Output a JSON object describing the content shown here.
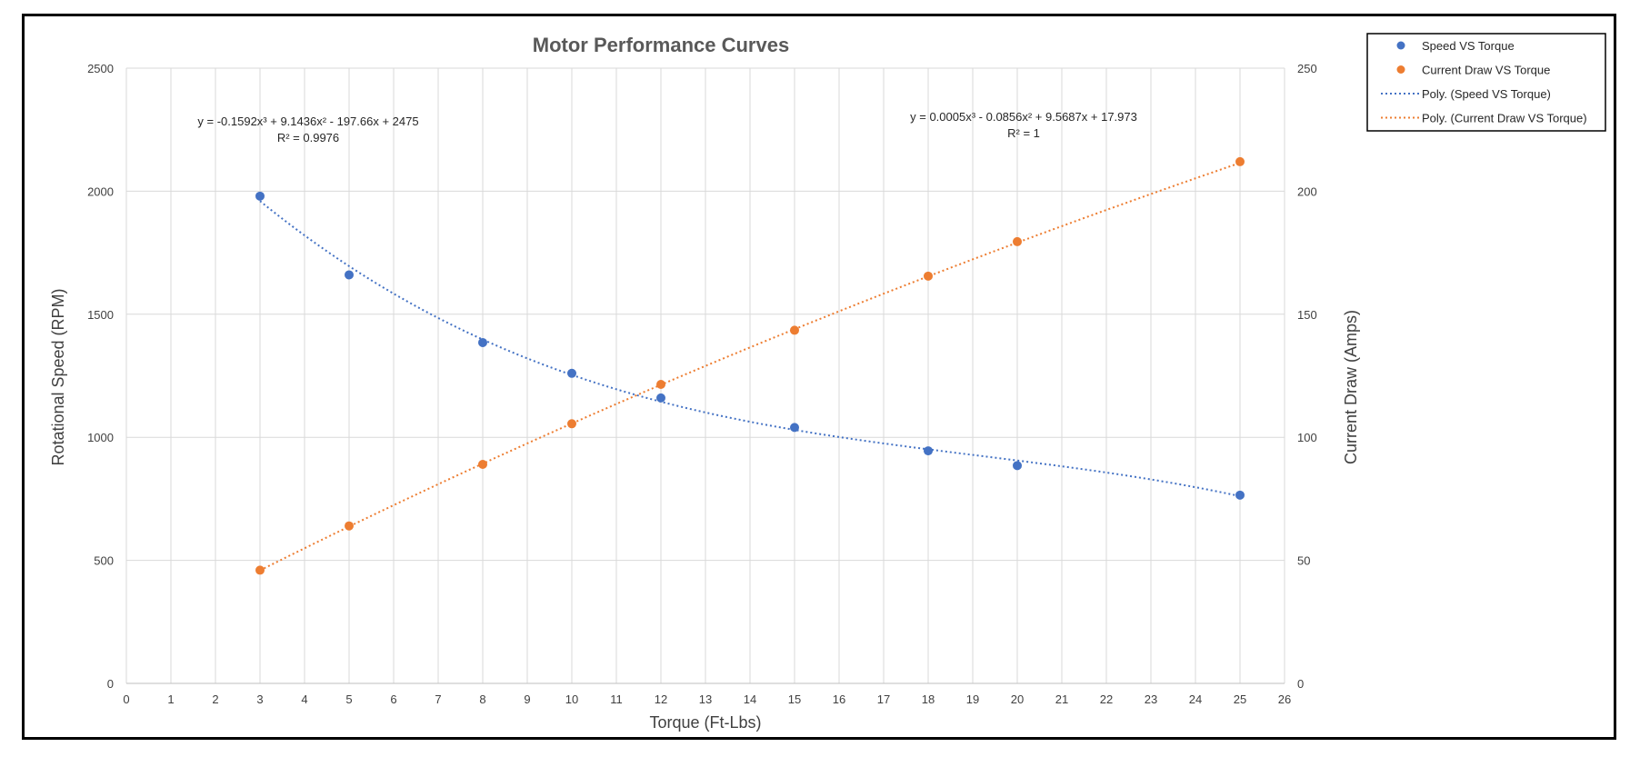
{
  "chart_data": {
    "type": "scatter",
    "title": "Motor Performance Curves",
    "xlabel": "Torque (Ft-Lbs)",
    "ylabel": "Rotational Speed (RPM)",
    "y2label": "Current Draw (Amps)",
    "xlim": [
      0,
      26
    ],
    "ylim": [
      0,
      2500
    ],
    "y2lim": [
      0,
      250
    ],
    "x_ticks": [
      0,
      1,
      2,
      3,
      4,
      5,
      6,
      7,
      8,
      9,
      10,
      11,
      12,
      13,
      14,
      15,
      16,
      17,
      18,
      19,
      20,
      21,
      22,
      23,
      24,
      25,
      26
    ],
    "y_ticks": [
      0,
      500,
      1000,
      1500,
      2000,
      2500
    ],
    "y2_ticks": [
      0,
      50,
      100,
      150,
      200,
      250
    ],
    "grid": true,
    "legend_position": "top-right",
    "series": [
      {
        "name": "Speed VS Torque",
        "axis": "left",
        "color": "#4472C4",
        "x": [
          3,
          5,
          8,
          10,
          12,
          15,
          18,
          20,
          25
        ],
        "y": [
          1980,
          1660,
          1385,
          1260,
          1160,
          1040,
          945,
          885,
          765
        ]
      },
      {
        "name": "Current Draw VS Torque",
        "axis": "right",
        "color": "#ED7D31",
        "x": [
          3,
          5,
          8,
          10,
          12,
          15,
          18,
          20,
          25
        ],
        "y": [
          46,
          64,
          89,
          105.5,
          121.5,
          143.5,
          165.5,
          179.5,
          212
        ]
      }
    ],
    "trendlines": [
      {
        "name": "Poly. (Speed VS Torque)",
        "axis": "left",
        "color": "#4472C4",
        "coefficients": [
          -0.1592,
          9.1436,
          -197.66,
          2475
        ],
        "x_range": [
          3,
          25
        ],
        "equation": "y = -0.1592x³ + 9.1436x² - 197.66x + 2475",
        "r_squared": "R² = 0.9976"
      },
      {
        "name": "Poly. (Current Draw VS Torque)",
        "axis": "right",
        "color": "#ED7D31",
        "coefficients": [
          0.0005,
          -0.0856,
          9.5687,
          17.973
        ],
        "x_range": [
          3,
          25
        ],
        "equation": "y = 0.0005x³ - 0.0856x² + 9.5687x + 17.973",
        "r_squared": "R² = 1"
      }
    ]
  }
}
